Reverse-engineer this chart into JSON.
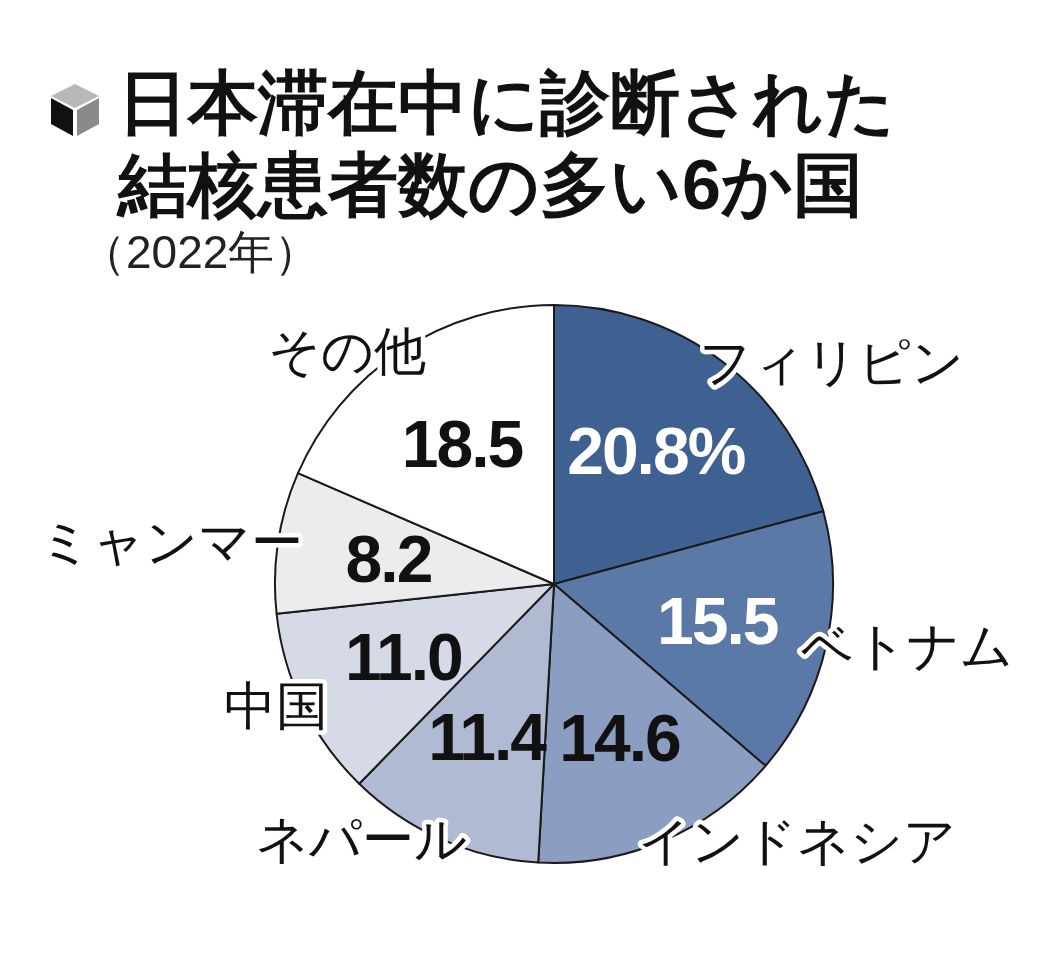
{
  "chart_data": {
    "type": "pie",
    "title": "日本滞在中に診断された結核患者数の多い6か国",
    "subtitle": "（2022年）",
    "categories": [
      "フィリピン",
      "ベトナム",
      "インドネシア",
      "ネパール",
      "中国",
      "ミャンマー",
      "その他"
    ],
    "values": [
      20.8,
      15.5,
      14.6,
      11.4,
      11.0,
      8.2,
      18.5
    ],
    "colors": [
      "#3f6191",
      "#5b79a7",
      "#8b9dc1",
      "#b1bad3",
      "#d6dae7",
      "#ececef",
      "#ffffff"
    ],
    "value_labels": [
      "20.8%",
      "15.5",
      "14.6",
      "11.4",
      "11.0",
      "8.2",
      "18.5"
    ]
  }
}
